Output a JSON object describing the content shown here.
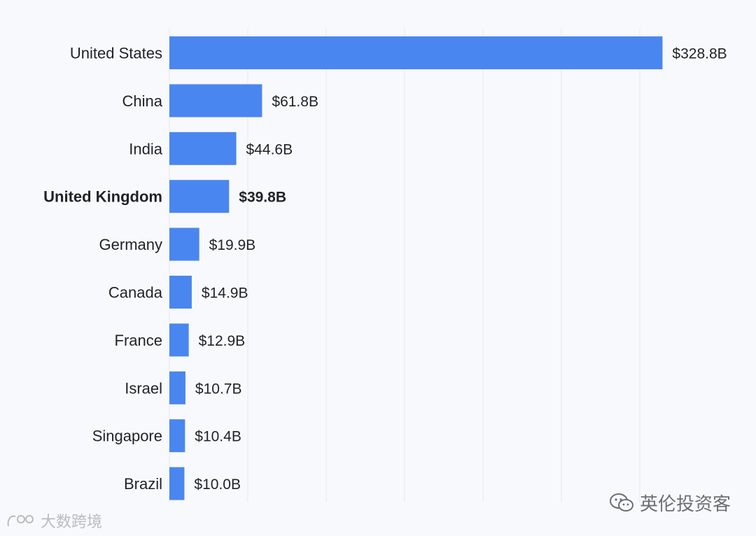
{
  "chart_data": {
    "type": "bar",
    "orientation": "horizontal",
    "categories": [
      "United States",
      "China",
      "India",
      "United Kingdom",
      "Germany",
      "Canada",
      "France",
      "Israel",
      "Singapore",
      "Brazil"
    ],
    "values": [
      328.8,
      61.8,
      44.6,
      39.8,
      19.9,
      14.9,
      12.9,
      10.7,
      10.4,
      10.0
    ],
    "value_labels": [
      "$328.8B",
      "$61.8B",
      "$44.6B",
      "$39.8B",
      "$19.9B",
      "$14.9B",
      "$12.9B",
      "$10.7B",
      "$10.4B",
      "$10.0B"
    ],
    "highlighted": "United Kingdom",
    "bar_color": "#4a86f0",
    "grid": "vertical",
    "xlim": [
      0,
      330
    ]
  },
  "watermarks": {
    "right": "英伦投资客",
    "left": "大数跨境"
  }
}
